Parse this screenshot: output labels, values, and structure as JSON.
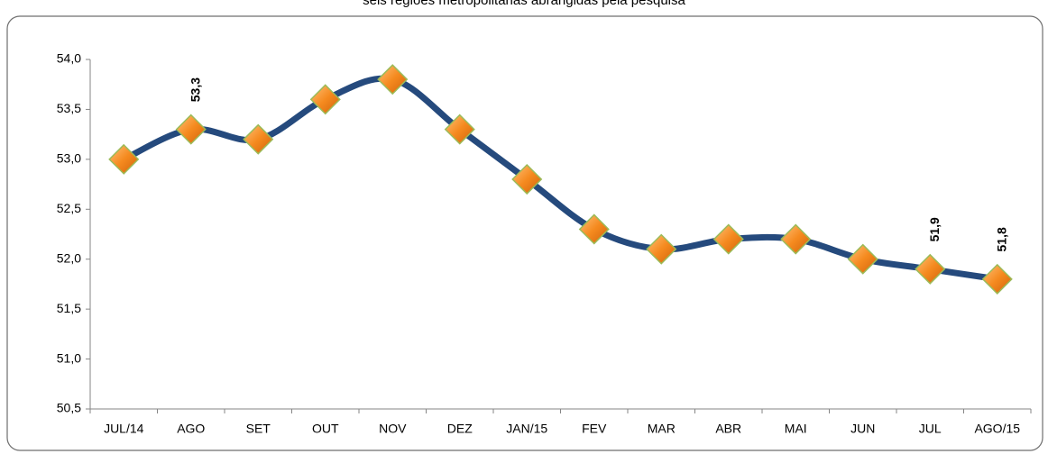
{
  "chart_data": {
    "type": "line",
    "title": "seis regiões metropolitanas abrangidas pela pesquisa",
    "categories": [
      "JUL/14",
      "AGO",
      "SET",
      "OUT",
      "NOV",
      "DEZ",
      "JAN/15",
      "FEV",
      "MAR",
      "ABR",
      "MAI",
      "JUN",
      "JUL",
      "AGO/15"
    ],
    "series": [
      {
        "name": null,
        "color": "#254a7d",
        "values": [
          53.0,
          53.3,
          53.2,
          53.6,
          53.8,
          53.3,
          52.8,
          52.3,
          52.1,
          52.2,
          52.2,
          52.0,
          51.9,
          51.8
        ],
        "value_labels": [
          null,
          "53,3",
          null,
          null,
          null,
          null,
          null,
          null,
          null,
          null,
          null,
          null,
          "51,9",
          "51,8"
        ],
        "marker_color": "#f28a1d"
      }
    ],
    "ylim": [
      50.5,
      54.0
    ],
    "yticks": [
      {
        "value": 50.5,
        "label": "50,5"
      },
      {
        "value": 51.0,
        "label": "51,0"
      },
      {
        "value": 51.5,
        "label": "51,5"
      },
      {
        "value": 52.0,
        "label": "52,0"
      },
      {
        "value": 52.5,
        "label": "52,5"
      },
      {
        "value": 53.0,
        "label": "53,0"
      },
      {
        "value": 53.5,
        "label": "53,5"
      },
      {
        "value": 54.0,
        "label": "54,0"
      }
    ],
    "grid": false
  }
}
